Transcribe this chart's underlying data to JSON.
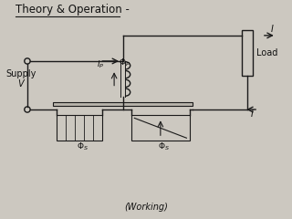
{
  "bg_color": "#ccc8c0",
  "title_text": "Theory & Operation -",
  "caption_text": "(Working)",
  "supply_label": "Supply",
  "supply_v": "V",
  "load_label": "Load",
  "line_color": "#1a1a1a",
  "text_color": "#111111",
  "title_fontsize": 8.5,
  "caption_fontsize": 7
}
